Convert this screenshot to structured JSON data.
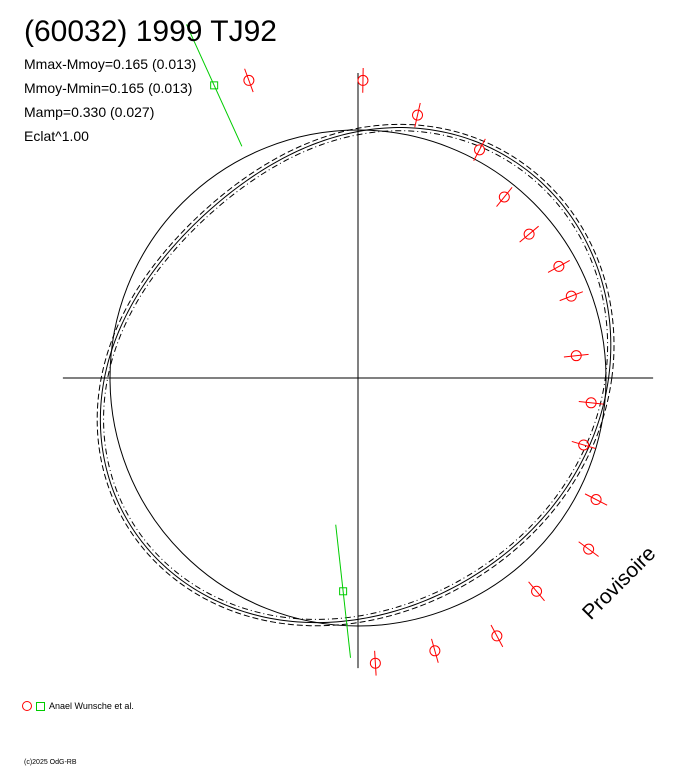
{
  "header": {
    "title": "(60032) 1999 TJ92",
    "stats": [
      "Mmax-Mmoy=0.165 (0.013)",
      "Mmoy-Mmin=0.165 (0.013)",
      "Mamp=0.330 (0.027)",
      "Eclat^1.00"
    ]
  },
  "watermark": "Provisoire",
  "legend": {
    "label": "Anael Wunsche et al."
  },
  "copyright": "(c)2025 OdG-RB",
  "colors": {
    "primary_points": "#ff0000",
    "secondary_points": "#00cc00",
    "axes": "#000000"
  },
  "chart_data": {
    "type": "scatter",
    "coordinate_system": "polar",
    "xlim": [
      -1.19,
      1.19
    ],
    "ylim": [
      -1.19,
      1.19
    ],
    "reference_circle_radius": 1.0,
    "mean_curve": {
      "harmonic_amplitudes": [
        {
          "harmonic": 2,
          "amplitude": 0.086,
          "phase_deg": -79
        },
        {
          "harmonic": 3,
          "amplitude": 0.012,
          "phase_deg": 120
        }
      ]
    },
    "envelope_offset": 0.013,
    "series": [
      {
        "marker": "circle",
        "points": [
          {
            "x": -0.44,
            "y": 1.2,
            "err": 0.05
          },
          {
            "x": 0.02,
            "y": 1.2,
            "err": 0.05
          },
          {
            "x": 0.24,
            "y": 1.06,
            "err": 0.05
          },
          {
            "x": 0.49,
            "y": 0.92,
            "err": 0.05
          },
          {
            "x": 0.59,
            "y": 0.73,
            "err": 0.05
          },
          {
            "x": 0.69,
            "y": 0.58,
            "err": 0.05
          },
          {
            "x": 0.81,
            "y": 0.45,
            "err": 0.05
          },
          {
            "x": 0.86,
            "y": 0.33,
            "err": 0.05
          },
          {
            "x": 0.88,
            "y": 0.09,
            "err": 0.05
          },
          {
            "x": 0.94,
            "y": -0.1,
            "err": 0.05
          },
          {
            "x": 0.91,
            "y": -0.27,
            "err": 0.05
          },
          {
            "x": 0.96,
            "y": -0.49,
            "err": 0.05
          },
          {
            "x": 0.93,
            "y": -0.69,
            "err": 0.05
          },
          {
            "x": 0.72,
            "y": -0.86,
            "err": 0.05
          },
          {
            "x": 0.56,
            "y": -1.04,
            "err": 0.05
          },
          {
            "x": 0.31,
            "y": -1.1,
            "err": 0.05
          },
          {
            "x": 0.07,
            "y": -1.15,
            "err": 0.05
          }
        ]
      },
      {
        "marker": "square",
        "points": [
          {
            "x": -0.58,
            "y": 1.18,
            "slope": -2.2
          },
          {
            "x": -0.06,
            "y": -0.86,
            "slope": -9.0
          }
        ]
      }
    ]
  }
}
